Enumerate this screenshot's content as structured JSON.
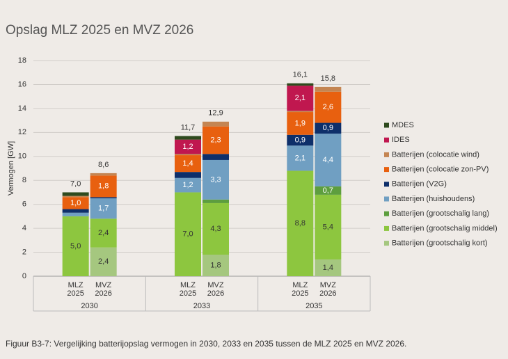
{
  "chart_data": {
    "type": "stacked-bar",
    "title": "Opslag MLZ 2025 en MVZ 2026",
    "y_label": "Vermogen [GW]",
    "caption": "Figuur B3-7: Vergelijking batterijopslag vermogen in 2030, 2033 en 2035 tussen de MLZ 2025 en MVZ 2026.",
    "groups": [
      "2030",
      "2033",
      "2035"
    ],
    "scenarios": [
      [
        "MLZ",
        "2025"
      ],
      [
        "MVZ",
        "2026"
      ]
    ],
    "ylim": [
      0,
      18
    ],
    "yticks": [
      0,
      2,
      4,
      6,
      8,
      10,
      12,
      14,
      16,
      18
    ],
    "grid": true,
    "legend": "right",
    "series": [
      {
        "name": "Batterijen (grootschalig kort)",
        "color": "#a5c77f",
        "values": [
          0,
          2.4,
          0,
          1.8,
          0,
          1.4
        ],
        "value_labels": [
          null,
          "2,4",
          null,
          "1,8",
          null,
          "1,4"
        ]
      },
      {
        "name": "Batterijen (grootschalig middel)",
        "color": "#8dc63f",
        "values": [
          5.0,
          2.4,
          7.0,
          4.3,
          8.8,
          5.4
        ],
        "value_labels": [
          "5,0",
          "2,4",
          "7,0",
          "4,3",
          "8,8",
          "5,4"
        ]
      },
      {
        "name": "Batterijen (grootschalig lang)",
        "color": "#5d9e3e",
        "values": [
          0,
          0,
          0,
          0.3,
          0,
          0.7
        ],
        "value_labels": [
          null,
          null,
          null,
          null,
          null,
          "0,7"
        ]
      },
      {
        "name": "Batterijen (huishoudens)",
        "color": "#709fc2",
        "values": [
          0.3,
          1.7,
          1.2,
          3.3,
          2.1,
          4.4
        ],
        "value_labels": [
          null,
          "1,7",
          "1,2",
          "3,3",
          "2,1",
          "4,4"
        ]
      },
      {
        "name": "Batterijen (V2G)",
        "color": "#0e2f6a",
        "values": [
          0.3,
          0.1,
          0.5,
          0.5,
          0.9,
          0.9
        ],
        "value_labels": [
          null,
          null,
          null,
          null,
          "0,9",
          "0,9"
        ]
      },
      {
        "name": "Batterijen (colocatie zon-PV)",
        "color": "#e8600f",
        "values": [
          1.0,
          1.8,
          1.4,
          2.3,
          1.9,
          2.6
        ],
        "value_labels": [
          "1,0",
          "1,8",
          "1,4",
          "2,3",
          "1,9",
          "2,6"
        ]
      },
      {
        "name": "Batterijen (colocatie wind)",
        "color": "#c48552",
        "values": [
          0.1,
          0.2,
          0.1,
          0.4,
          0.1,
          0.4
        ],
        "value_labels": [
          null,
          null,
          null,
          null,
          null,
          null
        ]
      },
      {
        "name": "IDES",
        "color": "#c0174f",
        "values": [
          0,
          0,
          1.2,
          0,
          2.1,
          0
        ],
        "value_labels": [
          null,
          null,
          "1,2",
          null,
          "2,1",
          null
        ]
      },
      {
        "name": "MDES",
        "color": "#2e4a1d",
        "values": [
          0.3,
          0,
          0.3,
          0,
          0.2,
          0
        ],
        "value_labels": [
          null,
          null,
          null,
          null,
          null,
          null
        ]
      }
    ],
    "totals": [
      7.0,
      8.6,
      11.7,
      12.9,
      16.1,
      15.8
    ],
    "total_labels": [
      "7,0",
      "8,6",
      "11,7",
      "12,9",
      "16,1",
      "15,8"
    ]
  }
}
